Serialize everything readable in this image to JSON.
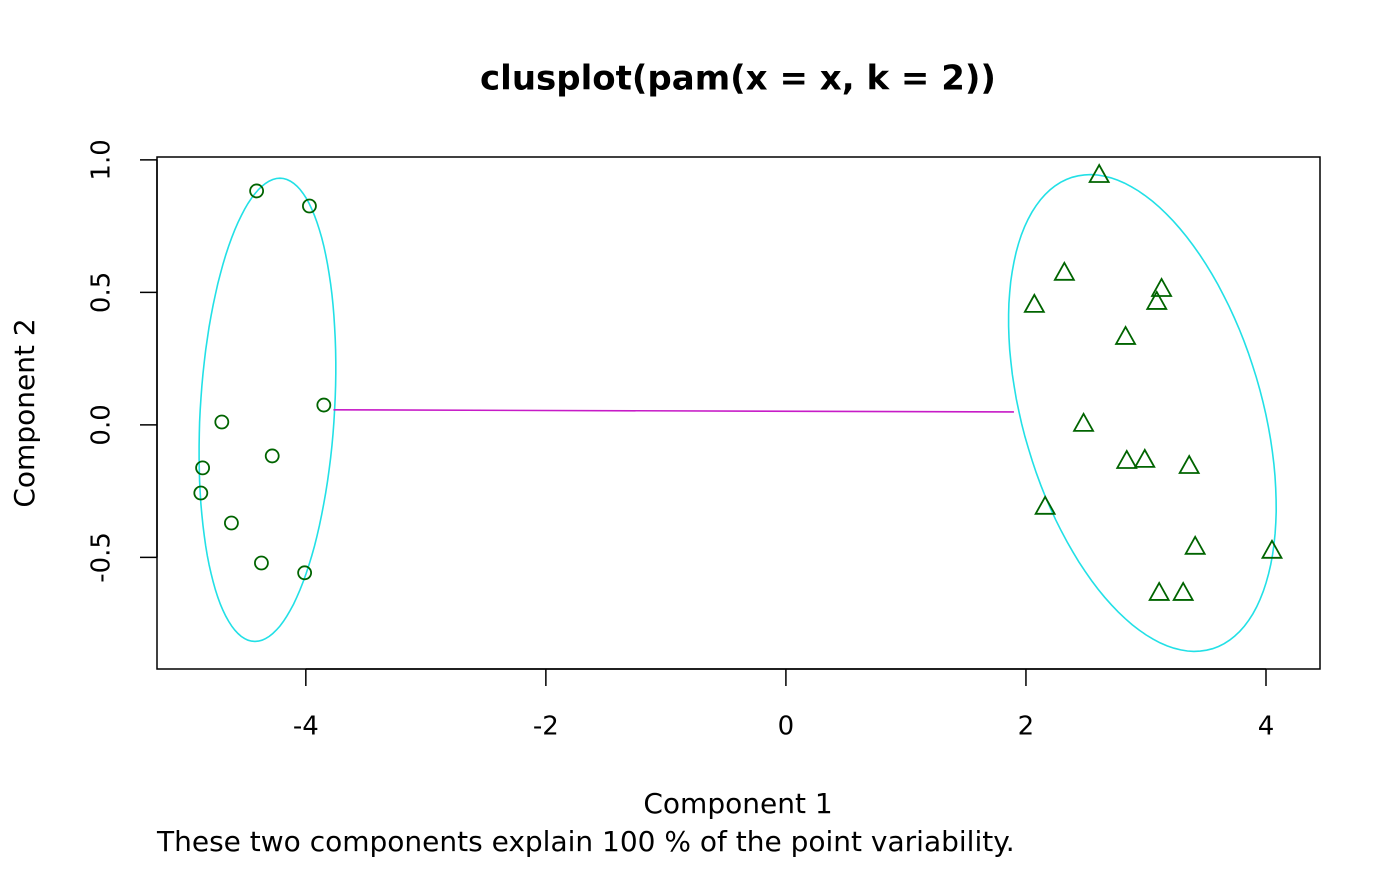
{
  "chart_data": {
    "type": "scatter",
    "title": "clusplot(pam(x = x, k = 2))",
    "x_label": "Component 1",
    "y_label": "Component 2",
    "subtitle": "These two components explain 100 % of the point variability.",
    "xlim": [
      -5.24,
      4.45
    ],
    "ylim": [
      -0.921,
      1.011
    ],
    "xticks": [
      -4,
      -2,
      0,
      2,
      4
    ],
    "yticks": [
      {
        "value": -0.5,
        "label": "-0.5"
      },
      {
        "value": 0,
        "label": "0.0"
      },
      {
        "value": 0.5,
        "label": "0.5"
      },
      {
        "value": 1,
        "label": "1.0"
      }
    ],
    "series": [
      {
        "marker": "circle",
        "color": "#006400",
        "x": [
          -4.41,
          -3.97,
          -3.85,
          -4.7,
          -4.28,
          -4.86,
          -4.875,
          -4.62,
          -4.37,
          -4.01
        ],
        "y": [
          0.883,
          0.826,
          0.075,
          0.011,
          -0.117,
          -0.162,
          -0.257,
          -0.37,
          -0.521,
          -0.558
        ]
      },
      {
        "marker": "triangle",
        "color": "#006400",
        "x": [
          2.61,
          2.32,
          2.07,
          3.13,
          3.09,
          2.83,
          2.48,
          2.84,
          2.99,
          3.36,
          2.16,
          3.41,
          4.05,
          3.11,
          3.31
        ],
        "y": [
          0.943,
          0.574,
          0.453,
          0.513,
          0.464,
          0.332,
          0.004,
          -0.136,
          -0.132,
          -0.155,
          -0.309,
          -0.46,
          -0.475,
          -0.634,
          -0.634
        ]
      }
    ],
    "ellipses": [
      {
        "color": "#22e0e6",
        "center": [
          -4.32,
          0.057
        ],
        "u": [
          0.104,
          0.874
        ],
        "v": [
          0.56,
          0
        ]
      },
      {
        "color": "#22e0e6",
        "center": [
          2.97,
          0.045
        ],
        "u": [
          -0.375,
          0.898
        ],
        "v": [
          1.05,
          -0.053
        ]
      }
    ],
    "segment": {
      "color": "#c71bc7",
      "x": [
        -3.77,
        1.9
      ],
      "y": [
        0.057,
        0.049
      ]
    }
  }
}
